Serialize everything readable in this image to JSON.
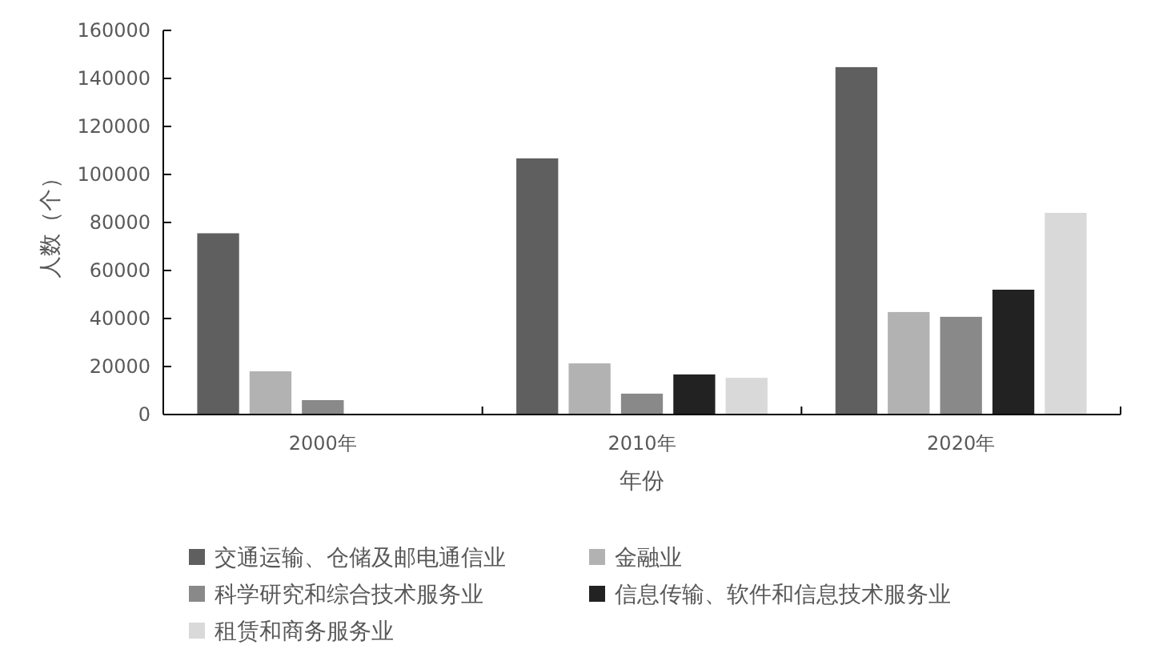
{
  "chart_data": {
    "type": "bar",
    "xlabel": "年份",
    "ylabel": "人数（个）",
    "categories": [
      "2000年",
      "2010年",
      "2020年"
    ],
    "ylim": [
      0,
      160000
    ],
    "yticks": [
      0,
      20000,
      40000,
      60000,
      80000,
      100000,
      120000,
      140000,
      160000
    ],
    "grid": false,
    "legend": "bottom",
    "series": [
      {
        "name": "交通运输、仓储及邮电通信业",
        "color": "#5f5f5f",
        "values": [
          75500,
          106700,
          144700
        ]
      },
      {
        "name": "金融业",
        "color": "#b2b2b2",
        "values": [
          18000,
          21300,
          42700
        ]
      },
      {
        "name": "科学研究和综合技术服务业",
        "color": "#898989",
        "values": [
          6000,
          8700,
          40700
        ]
      },
      {
        "name": "信息传输、软件和信息技术服务业",
        "color": "#222222",
        "values": [
          null,
          16700,
          52000
        ]
      },
      {
        "name": "租赁和商务服务业",
        "color": "#d9d9d9",
        "values": [
          null,
          15300,
          84000
        ]
      }
    ]
  }
}
